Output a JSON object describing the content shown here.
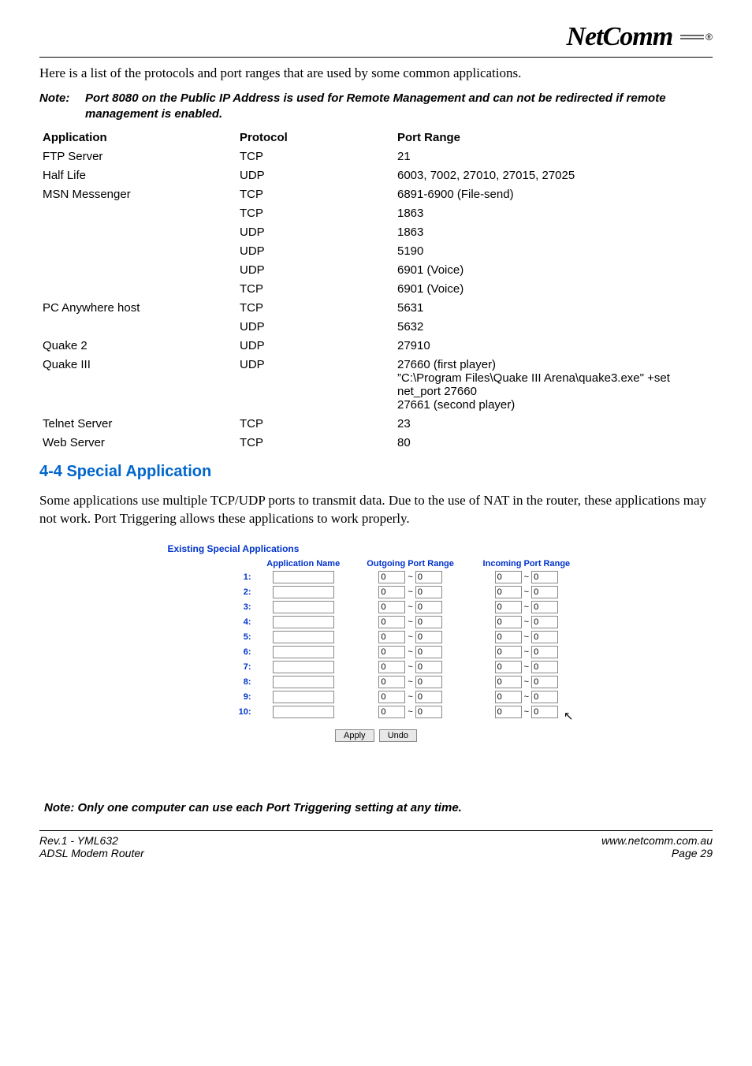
{
  "logo": {
    "brand": "NetComm",
    "reg": "®"
  },
  "intro": "Here is a list of the protocols and port ranges that are used by some common applications.",
  "note1": {
    "label": "Note:",
    "body": "Port 8080 on the Public IP Address is used for Remote Management and can not be redirected if remote management is enabled."
  },
  "table_header": {
    "app": "Application",
    "proto": "Protocol",
    "range": "Port Range"
  },
  "rows": [
    {
      "app": "FTP Server",
      "proto": "TCP",
      "range": "21"
    },
    {
      "app": "Half Life",
      "proto": "UDP",
      "range": "6003, 7002, 27010, 27015, 27025"
    },
    {
      "app": "MSN Messenger",
      "proto": "TCP",
      "range": "6891-6900 (File-send)"
    },
    {
      "app": "",
      "proto": "TCP",
      "range": "1863"
    },
    {
      "app": "",
      "proto": "UDP",
      "range": "1863"
    },
    {
      "app": "",
      "proto": "UDP",
      "range": "5190"
    },
    {
      "app": "",
      "proto": "UDP",
      "range": "6901 (Voice)"
    },
    {
      "app": "",
      "proto": "TCP",
      "range": "6901 (Voice)"
    },
    {
      "app": "PC Anywhere host",
      "proto": "TCP",
      "range": "5631"
    },
    {
      "app": "",
      "proto": "UDP",
      "range": "5632"
    },
    {
      "app": "Quake 2",
      "proto": "UDP",
      "range": "27910"
    },
    {
      "app": "Quake III",
      "proto": "UDP",
      "range": "27660 (first player)\n\"C:\\Program Files\\Quake III Arena\\quake3.exe\" +set net_port 27660\n27661 (second player)"
    },
    {
      "app": "Telnet Server",
      "proto": "TCP",
      "range": "23"
    },
    {
      "app": "Web Server",
      "proto": "TCP",
      "range": "80"
    }
  ],
  "section_title": "4-4 Special Application",
  "body_text": "Some applications use multiple TCP/UDP ports to transmit data. Due to the use of NAT in the router, these applications may not work. Port Triggering allows these applications to work properly.",
  "screenshot": {
    "title": "Existing Special Applications",
    "headers": {
      "name": "Application Name",
      "out": "Outgoing Port Range",
      "in": "Incoming Port Range"
    },
    "row_count": 10,
    "default_port": "0",
    "buttons": {
      "apply": "Apply",
      "undo": "Undo"
    }
  },
  "note2": "Note:  Only one computer can use each Port Triggering setting at any time.",
  "footer": {
    "left1": "Rev.1 - YML632",
    "left2": "ADSL Modem Router",
    "right1": "www.netcomm.com.au",
    "right2": "Page 29"
  }
}
